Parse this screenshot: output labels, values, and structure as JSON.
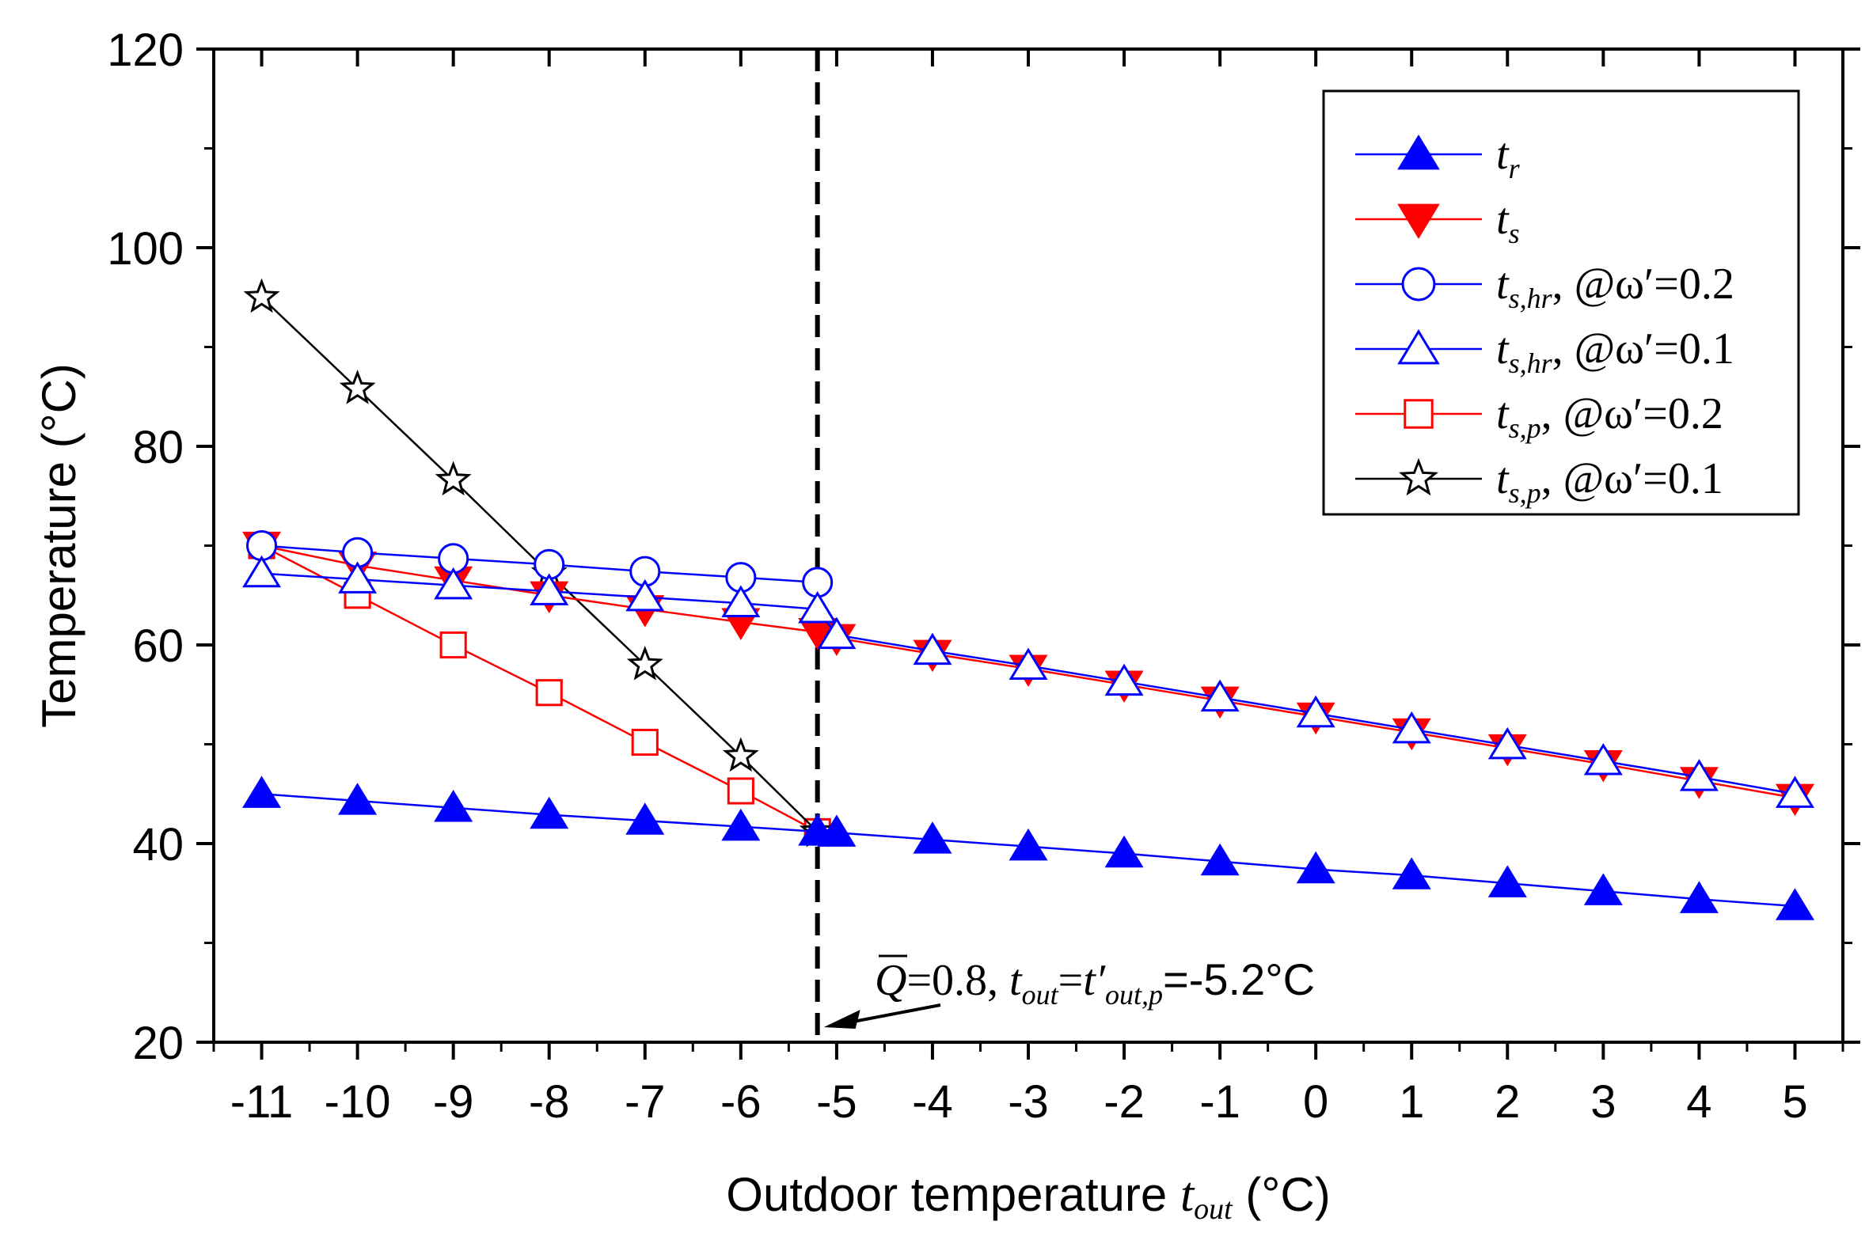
{
  "chart_data": {
    "type": "line",
    "xlabel": "Outdoor temperature ",
    "xlabel_symbol": "t",
    "xlabel_sub": "out",
    "xlabel_unit": " (°C)",
    "ylabel": "Temperature (°C)",
    "xlim": [
      -11.5,
      5.5
    ],
    "ylim": [
      20,
      120
    ],
    "x_ticks": [
      -11,
      -10,
      -9,
      -8,
      -7,
      -6,
      -5,
      -4,
      -3,
      -2,
      -1,
      0,
      1,
      2,
      3,
      4,
      5
    ],
    "x_tick_labels": [
      "-11",
      "-10",
      "-9",
      "-8",
      "-7",
      "-6",
      "-5",
      "-4",
      "-3",
      "-2",
      "-1",
      "0",
      "1",
      "2",
      "3",
      "4",
      "5"
    ],
    "y_ticks": [
      20,
      40,
      60,
      80,
      100,
      120
    ],
    "y_tick_labels": [
      "20",
      "40",
      "60",
      "80",
      "100",
      "120"
    ],
    "legend_position": "top-right",
    "series": [
      {
        "name": "t_r",
        "legend": {
          "sym": "t",
          "sub": "r",
          "suffix": ""
        },
        "color": "#0000ff",
        "marker": "triangle-up-filled",
        "x": [
          -11,
          -10,
          -9,
          -8,
          -7,
          -6,
          -5.2,
          -5,
          -4,
          -3,
          -2,
          -1,
          0,
          1,
          2,
          3,
          4,
          5
        ],
        "y": [
          45,
          44.3,
          43.6,
          42.9,
          42.3,
          41.7,
          41.2,
          41.1,
          40.4,
          39.7,
          39.0,
          38.2,
          37.4,
          36.8,
          36.0,
          35.2,
          34.4,
          33.7
        ]
      },
      {
        "name": "t_s",
        "legend": {
          "sym": "t",
          "sub": "s",
          "suffix": ""
        },
        "color": "#ff0000",
        "marker": "triangle-down-filled",
        "x": [
          -11,
          -10,
          -9,
          -8,
          -7,
          -6,
          -5.2,
          -5,
          -4,
          -3,
          -2,
          -1,
          0,
          1,
          2,
          3,
          4,
          5
        ],
        "y": [
          70,
          68,
          66.5,
          65,
          63.6,
          62.3,
          61.3,
          60.7,
          59.1,
          57.6,
          56,
          54.4,
          52.8,
          51.2,
          49.6,
          48,
          46.3,
          44.6
        ]
      },
      {
        "name": "t_s,hr, @ω'=0.2",
        "legend": {
          "sym": "t",
          "sub": "s,hr",
          "suffix": ", @ω′=0.2"
        },
        "color": "#0000ff",
        "marker": "circle-open",
        "x": [
          -11,
          -10,
          -9,
          -8,
          -7,
          -6,
          -5.2
        ],
        "y": [
          70,
          69.3,
          68.7,
          68.1,
          67.4,
          66.8,
          66.3
        ]
      },
      {
        "name": "t_s,hr, @ω'=0.1",
        "legend": {
          "sym": "t",
          "sub": "s,hr",
          "suffix": ", @ω′=0.1"
        },
        "color": "#0000ff",
        "marker": "triangle-up-open",
        "x": [
          -11,
          -10,
          -9,
          -8,
          -7,
          -6,
          -5.2,
          -5,
          -4,
          -3,
          -2,
          -1,
          0,
          1,
          2,
          3,
          4,
          5
        ],
        "y": [
          67.2,
          66.6,
          66,
          65.4,
          64.8,
          64.2,
          63.6,
          61,
          59.4,
          57.9,
          56.3,
          54.7,
          53.1,
          51.5,
          49.9,
          48.3,
          46.7,
          45
        ]
      },
      {
        "name": "t_s,p, @ω'=0.2",
        "legend": {
          "sym": "t",
          "sub": "s,p",
          "suffix": ", @ω′=0.2"
        },
        "color": "#ff0000",
        "marker": "square-open",
        "x": [
          -11,
          -10,
          -9,
          -8,
          -7,
          -6,
          -5.2
        ],
        "y": [
          70,
          65,
          60,
          55.2,
          50.2,
          45.3,
          41.2
        ]
      },
      {
        "name": "t_s,p, @ω'=0.1",
        "legend": {
          "sym": "t",
          "sub": "s,p",
          "suffix": ", @ω′=0.1"
        },
        "color": "#000000",
        "marker": "star-open",
        "x": [
          -11,
          -10,
          -9,
          -8,
          -7,
          -6,
          -5.2
        ],
        "y": [
          95,
          85.8,
          76.6,
          67.2,
          58,
          48.8,
          41.2
        ]
      }
    ],
    "vertical_line": {
      "x": -5.2,
      "style": "dashed",
      "color": "#000000"
    },
    "annotation": {
      "q_symbol": "Q",
      "text_a": "=0.8, ",
      "t1": "t",
      "t1_sub": "out",
      "text_b": "=",
      "t2": "t′",
      "t2_sub": "out,p",
      "text_c": "=-5.2°C"
    }
  }
}
